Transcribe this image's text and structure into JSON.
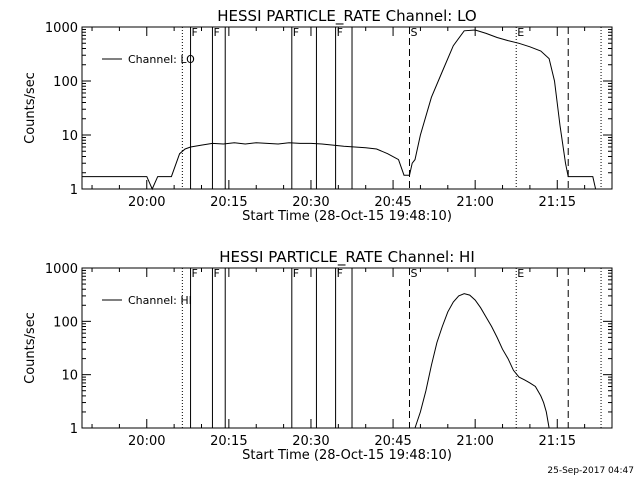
{
  "chart_data": [
    {
      "type": "line",
      "title": "HESSI PARTICLE_RATE Channel: LO",
      "xlabel": "Start Time (28-Oct-15 19:48:10)",
      "ylabel": "Counts/sec",
      "y_scale": "log",
      "ylim": [
        1,
        1000
      ],
      "y_ticks": [
        {
          "value": 1,
          "label": "1"
        },
        {
          "value": 10,
          "label": "10"
        },
        {
          "value": 100,
          "label": "100"
        },
        {
          "value": 1000,
          "label": "1000"
        }
      ],
      "xlim": [
        "19:48:10",
        "21:25:00"
      ],
      "x_ticks": [
        {
          "time": "20:00",
          "label": "20:00"
        },
        {
          "time": "20:15",
          "label": "20:15"
        },
        {
          "time": "20:30",
          "label": "20:30"
        },
        {
          "time": "20:45",
          "label": "20:45"
        },
        {
          "time": "21:00",
          "label": "21:00"
        },
        {
          "time": "21:15",
          "label": "21:15"
        }
      ],
      "grid": false,
      "legend": {
        "position": "top-left",
        "entries": [
          "Channel: LO"
        ]
      },
      "markers": [
        {
          "time": "20:06:30",
          "style": "dotted",
          "label": ""
        },
        {
          "time": "20:08:00",
          "style": "solid",
          "label": "F"
        },
        {
          "time": "20:12:00",
          "style": "solid",
          "label": "F"
        },
        {
          "time": "20:14:20",
          "style": "solid",
          "label": ""
        },
        {
          "time": "20:26:30",
          "style": "solid",
          "label": "F"
        },
        {
          "time": "20:31:00",
          "style": "solid",
          "label": ""
        },
        {
          "time": "20:34:30",
          "style": "solid",
          "label": "F"
        },
        {
          "time": "20:37:30",
          "style": "solid",
          "label": ""
        },
        {
          "time": "20:48:00",
          "style": "dashed",
          "label": "S"
        },
        {
          "time": "21:07:30",
          "style": "dotted",
          "label": "E"
        },
        {
          "time": "21:17:00",
          "style": "dashed",
          "label": ""
        },
        {
          "time": "21:23:00",
          "style": "dotted",
          "label": ""
        }
      ],
      "series": [
        {
          "name": "Channel: LO",
          "segments": [
            [
              [
                "19:48:10",
                1.7
              ],
              [
                "20:00:00",
                1.7
              ],
              [
                "20:01:00",
                1.0
              ],
              [
                "20:02:00",
                1.7
              ],
              [
                "20:04:30",
                1.7
              ],
              [
                "20:06:00",
                4.5
              ],
              [
                "20:07:00",
                5.5
              ],
              [
                "20:08:00",
                6.0
              ],
              [
                "20:10:00",
                6.5
              ],
              [
                "20:12:00",
                7.0
              ],
              [
                "20:14:00",
                6.8
              ],
              [
                "20:16:00",
                7.2
              ],
              [
                "20:18:00",
                6.8
              ],
              [
                "20:20:00",
                7.2
              ],
              [
                "20:22:00",
                7.0
              ],
              [
                "20:24:00",
                6.8
              ],
              [
                "20:26:00",
                7.2
              ],
              [
                "20:28:00",
                7.0
              ],
              [
                "20:30:00",
                7.0
              ],
              [
                "20:32:00",
                6.8
              ],
              [
                "20:34:00",
                6.5
              ],
              [
                "20:36:00",
                6.2
              ],
              [
                "20:38:00",
                6.0
              ],
              [
                "20:40:00",
                5.8
              ],
              [
                "20:42:00",
                5.5
              ],
              [
                "20:44:00",
                4.5
              ],
              [
                "20:46:00",
                3.5
              ],
              [
                "20:47:00",
                1.8
              ],
              [
                "20:48:00",
                1.8
              ],
              [
                "20:48:30",
                3.0
              ],
              [
                "20:49:00",
                3.5
              ],
              [
                "20:50:00",
                10
              ],
              [
                "20:52:00",
                50
              ],
              [
                "20:54:00",
                150
              ],
              [
                "20:56:00",
                450
              ],
              [
                "20:58:00",
                850
              ],
              [
                "21:00:00",
                880
              ],
              [
                "21:02:00",
                760
              ],
              [
                "21:04:00",
                640
              ],
              [
                "21:06:00",
                560
              ],
              [
                "21:08:00",
                500
              ],
              [
                "21:10:00",
                430
              ],
              [
                "21:12:00",
                360
              ],
              [
                "21:13:30",
                260
              ],
              [
                "21:14:30",
                100
              ],
              [
                "21:15:30",
                15
              ],
              [
                "21:16:30",
                3
              ],
              [
                "21:17:00",
                1.7
              ],
              [
                "21:20:00",
                1.7
              ],
              [
                "21:21:30",
                1.7
              ],
              [
                "21:22:00",
                1.0
              ]
            ]
          ]
        }
      ]
    },
    {
      "type": "line",
      "title": "HESSI PARTICLE_RATE Channel: HI",
      "xlabel": "Start Time (28-Oct-15 19:48:10)",
      "ylabel": "Counts/sec",
      "y_scale": "log",
      "ylim": [
        1,
        1000
      ],
      "y_ticks": [
        {
          "value": 1,
          "label": "1"
        },
        {
          "value": 10,
          "label": "10"
        },
        {
          "value": 100,
          "label": "100"
        },
        {
          "value": 1000,
          "label": "1000"
        }
      ],
      "xlim": [
        "19:48:10",
        "21:25:00"
      ],
      "x_ticks": [
        {
          "time": "20:00",
          "label": "20:00"
        },
        {
          "time": "20:15",
          "label": "20:15"
        },
        {
          "time": "20:30",
          "label": "20:30"
        },
        {
          "time": "20:45",
          "label": "20:45"
        },
        {
          "time": "21:00",
          "label": "21:00"
        },
        {
          "time": "21:15",
          "label": "21:15"
        }
      ],
      "grid": false,
      "legend": {
        "position": "top-left",
        "entries": [
          "Channel: HI"
        ]
      },
      "markers": [
        {
          "time": "20:06:30",
          "style": "dotted",
          "label": ""
        },
        {
          "time": "20:08:00",
          "style": "solid",
          "label": "F"
        },
        {
          "time": "20:12:00",
          "style": "solid",
          "label": "F"
        },
        {
          "time": "20:14:20",
          "style": "solid",
          "label": ""
        },
        {
          "time": "20:26:30",
          "style": "solid",
          "label": "F"
        },
        {
          "time": "20:31:00",
          "style": "solid",
          "label": ""
        },
        {
          "time": "20:34:30",
          "style": "solid",
          "label": "F"
        },
        {
          "time": "20:37:30",
          "style": "solid",
          "label": ""
        },
        {
          "time": "20:48:00",
          "style": "dashed",
          "label": "S"
        },
        {
          "time": "21:07:30",
          "style": "dotted",
          "label": "E"
        },
        {
          "time": "21:17:00",
          "style": "dashed",
          "label": ""
        },
        {
          "time": "21:23:00",
          "style": "dotted",
          "label": ""
        }
      ],
      "series": [
        {
          "name": "Channel: HI",
          "segments": [
            [
              [
                "20:49:00",
                1.0
              ],
              [
                "20:50:00",
                2
              ],
              [
                "20:51:00",
                5
              ],
              [
                "20:52:00",
                15
              ],
              [
                "20:53:00",
                40
              ],
              [
                "20:54:00",
                80
              ],
              [
                "20:55:00",
                150
              ],
              [
                "20:56:00",
                230
              ],
              [
                "20:57:00",
                300
              ],
              [
                "20:58:00",
                330
              ],
              [
                "20:59:00",
                310
              ],
              [
                "21:00:00",
                250
              ],
              [
                "21:01:00",
                180
              ],
              [
                "21:02:00",
                120
              ],
              [
                "21:03:00",
                80
              ],
              [
                "21:04:00",
                50
              ],
              [
                "21:05:00",
                30
              ],
              [
                "21:06:00",
                20
              ],
              [
                "21:07:00",
                12
              ],
              [
                "21:08:00",
                9
              ],
              [
                "21:09:00",
                8
              ],
              [
                "21:10:00",
                7
              ],
              [
                "21:11:00",
                6
              ],
              [
                "21:12:00",
                4
              ],
              [
                "21:12:30",
                3
              ],
              [
                "21:13:00",
                2
              ],
              [
                "21:13:30",
                1.0
              ]
            ]
          ]
        }
      ]
    }
  ],
  "footer": {
    "timestamp": "25-Sep-2017 04:47"
  }
}
